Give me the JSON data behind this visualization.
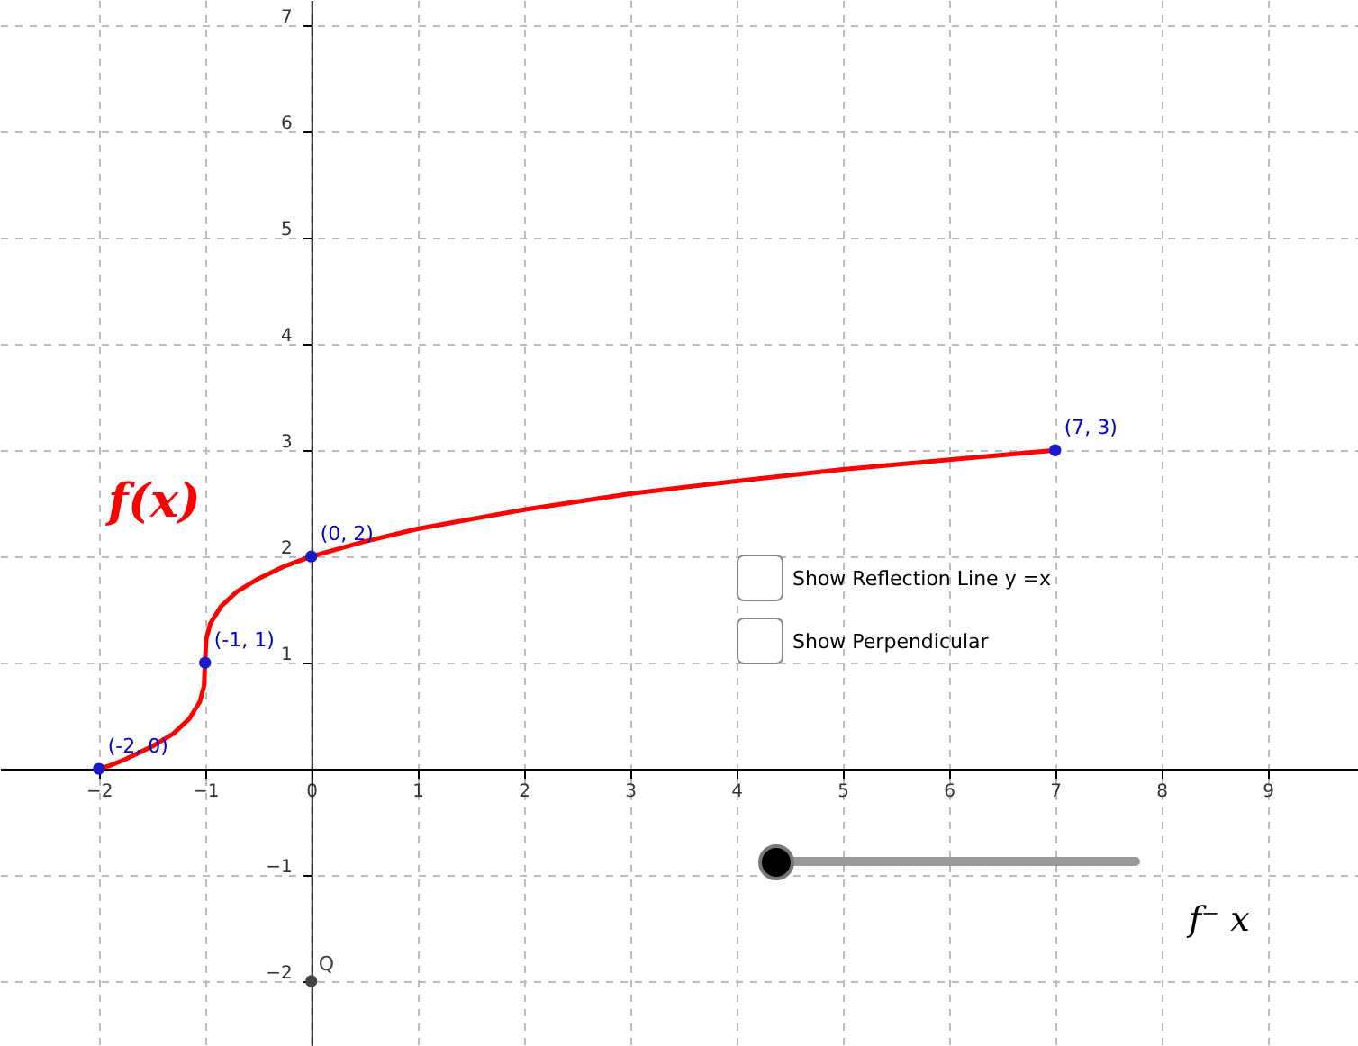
{
  "chart_data": {
    "type": "line",
    "xlim": [
      -2.93,
      9.85
    ],
    "ylim": [
      -2.61,
      7.24
    ],
    "xticks": [
      -2,
      -1,
      0,
      1,
      2,
      3,
      4,
      5,
      6,
      7,
      8,
      9
    ],
    "yticks": [
      -2,
      -1,
      1,
      2,
      3,
      4,
      5,
      6,
      7
    ],
    "grid": true,
    "series": [
      {
        "name": "f(x)",
        "color": "#ff0000",
        "x": [
          -2,
          -1.9,
          -1.75,
          -1.5,
          -1.3,
          -1.15,
          -1.05,
          -1.01,
          -1,
          -0.99,
          -0.95,
          -0.85,
          -0.7,
          -0.5,
          -0.25,
          0,
          0.5,
          1,
          2,
          3,
          4,
          5,
          6,
          7
        ],
        "values": [
          0,
          0.03,
          0.09,
          0.21,
          0.33,
          0.47,
          0.63,
          0.78,
          1,
          1.22,
          1.37,
          1.53,
          1.67,
          1.79,
          1.91,
          2,
          2.14,
          2.26,
          2.44,
          2.59,
          2.71,
          2.82,
          2.91,
          3
        ]
      },
      {
        "type": "scatter",
        "color": "#1a1acc",
        "x": [
          -2,
          -1,
          0,
          7
        ],
        "values": [
          0,
          1,
          2,
          3
        ]
      },
      {
        "name": "Q",
        "type": "scatter",
        "color": "#444444",
        "x": [
          0
        ],
        "values": [
          -2
        ]
      }
    ],
    "annotations": [
      "Show Reflection Line y =x",
      "Show Perpendicular",
      "f⁻  x",
      {
        "text": "(-2, 0)",
        "x": -2,
        "y": 0
      },
      {
        "text": "(-1, 1)",
        "x": -1,
        "y": 1
      },
      {
        "text": "(0, 2)",
        "x": 0,
        "y": 2
      },
      {
        "text": "(7, 3)",
        "x": 7,
        "y": 3
      }
    ]
  }
}
